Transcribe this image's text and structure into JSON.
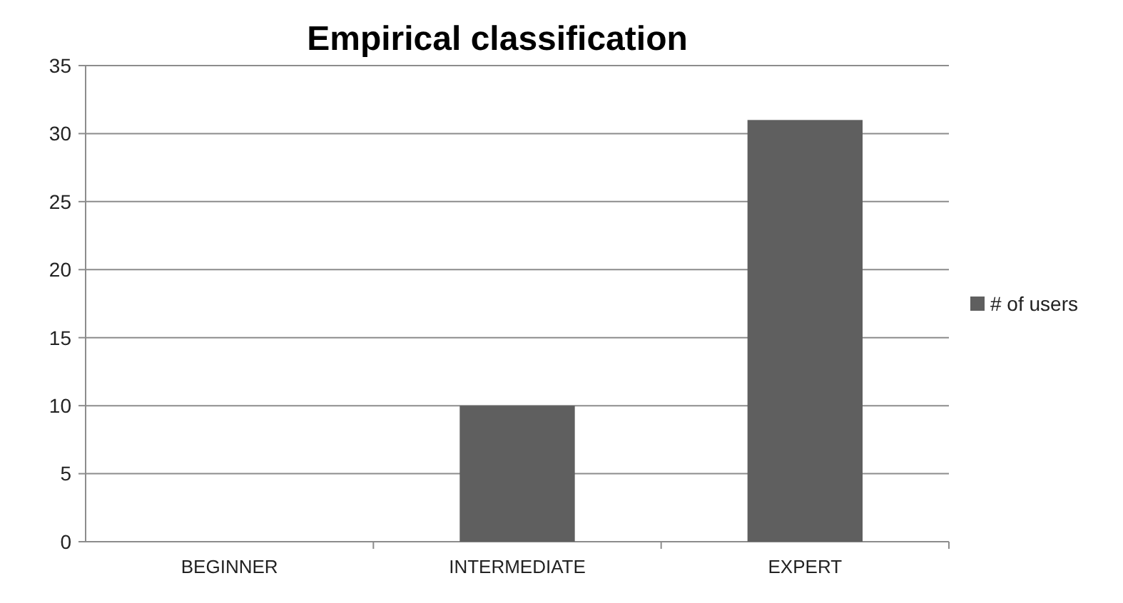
{
  "chart_data": {
    "type": "bar",
    "title": "Empirical classification",
    "categories": [
      "BEGINNER",
      "INTERMEDIATE",
      "EXPERT"
    ],
    "series": [
      {
        "name": "# of users",
        "color": "#5f5f5f",
        "values": [
          0,
          10,
          31
        ]
      }
    ],
    "ylim": [
      0,
      35
    ],
    "yticks": [
      0,
      5,
      10,
      15,
      20,
      25,
      30,
      35
    ],
    "grid": "y",
    "legend": "right"
  }
}
